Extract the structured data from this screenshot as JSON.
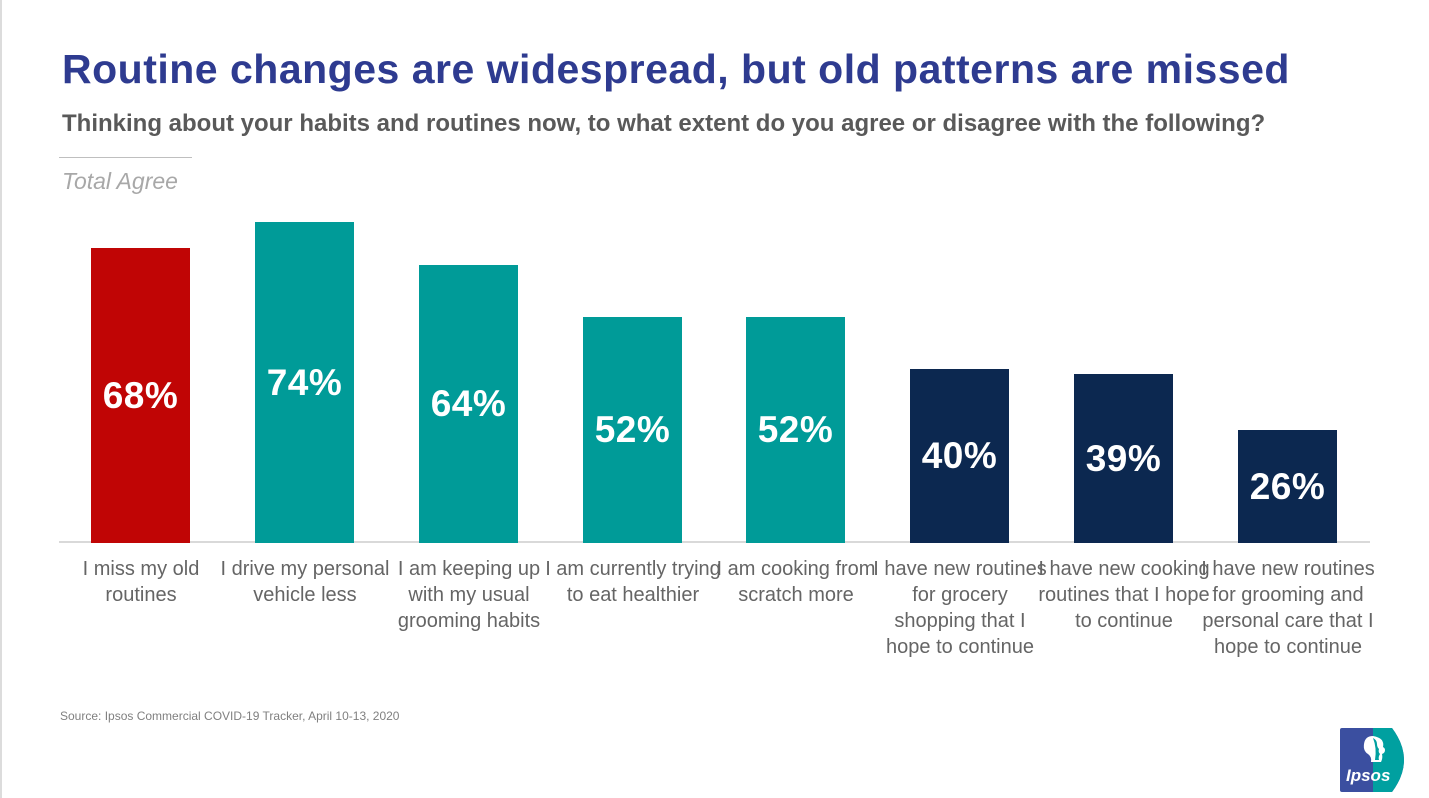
{
  "header": {
    "title": "Routine changes are widespread, but old patterns are missed",
    "question": "Thinking about your habits and routines now, to what extent do you agree or disagree with the following?"
  },
  "chart": {
    "note": "Total Agree"
  },
  "chart_data": {
    "type": "bar",
    "title": "Total Agree",
    "categories": [
      "I miss my old routines",
      "I drive my personal vehicle less",
      "I am keeping up with my usual grooming habits",
      "I am currently trying to eat healthier",
      "I am cooking from scratch more",
      "I have new routines for grocery shopping that I hope to continue",
      "I have new cooking routines that I hope to continue",
      "I have new routines for grooming and personal care that I hope to continue"
    ],
    "values": [
      68,
      74,
      64,
      52,
      52,
      40,
      39,
      26
    ],
    "unit": "%",
    "bar_colors": [
      "#c00505",
      "#009b98",
      "#009b98",
      "#009b98",
      "#009b98",
      "#0c2850",
      "#0c2850",
      "#0c2850"
    ],
    "ylim": [
      0,
      100
    ],
    "grid": false,
    "legend": false,
    "value_labels_position": "center-inside",
    "xlabel": "",
    "ylabel": ""
  },
  "footer": {
    "source": "Source: Ipsos Commercial COVID-19 Tracker, April 10-13, 2020",
    "logo_text": "Ipsos"
  },
  "colors": {
    "title_blue": "#2e3b90",
    "subtitle_gray": "#595959",
    "highlight_red": "#c00505",
    "teal": "#009b98",
    "navy": "#0c2850",
    "baseline_gray": "#d9d9d9",
    "logo_blue": "#3b4fa0",
    "logo_teal": "#00a0a0"
  }
}
